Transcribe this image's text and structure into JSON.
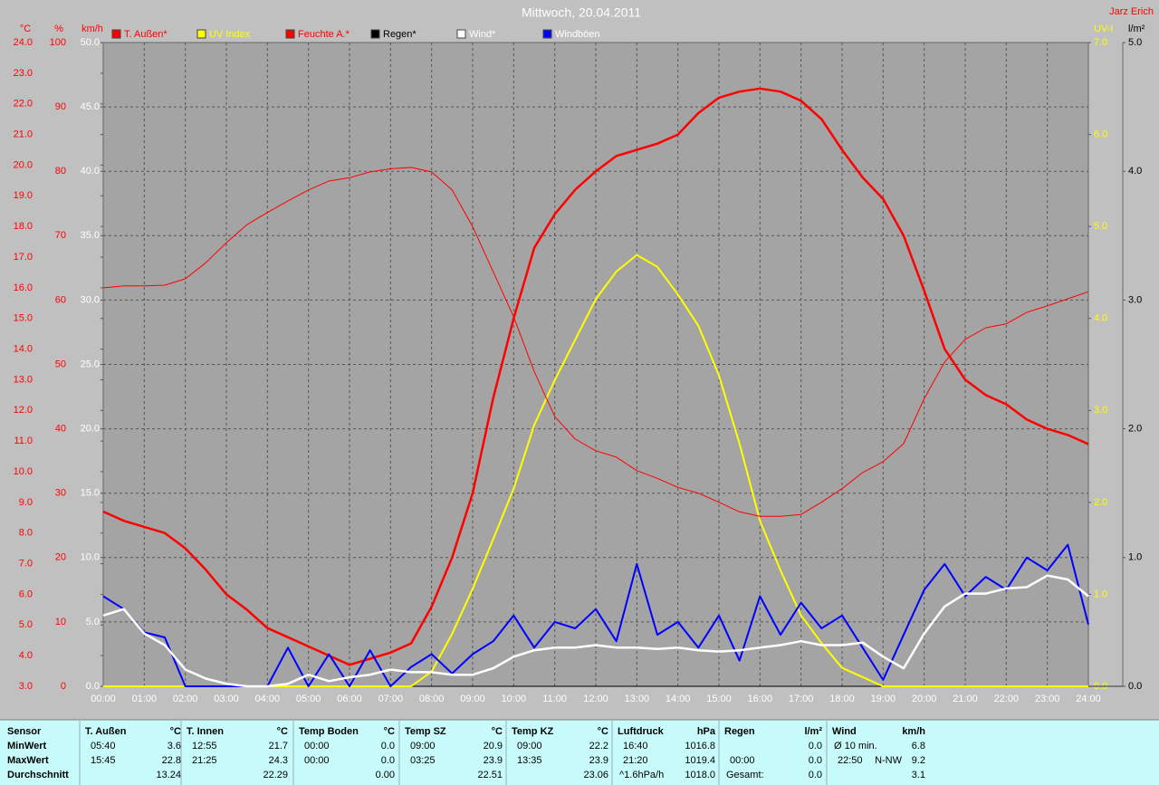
{
  "chart_data": {
    "type": "line",
    "title": "Mittwoch, 20.04.2011",
    "author": "Jarz Erich",
    "axes": [
      {
        "id": "temp",
        "label": "°C",
        "side": "left",
        "color": "#ff0000",
        "lim": [
          3,
          24
        ],
        "ticks": [
          {
            "value": 3,
            "label": "3.0"
          },
          {
            "value": 4,
            "label": "4.0"
          },
          {
            "value": 5,
            "label": "5.0"
          },
          {
            "value": 6,
            "label": "6.0"
          },
          {
            "value": 7,
            "label": "7.0"
          },
          {
            "value": 8,
            "label": "8.0"
          },
          {
            "value": 9,
            "label": "9.0"
          },
          {
            "value": 10,
            "label": "10.0"
          },
          {
            "value": 11,
            "label": "11.0"
          },
          {
            "value": 12,
            "label": "12.0"
          },
          {
            "value": 13,
            "label": "13.0"
          },
          {
            "value": 14,
            "label": "14.0"
          },
          {
            "value": 15,
            "label": "15.0"
          },
          {
            "value": 16,
            "label": "16.0"
          },
          {
            "value": 17,
            "label": "17.0"
          },
          {
            "value": 18,
            "label": "18.0"
          },
          {
            "value": 19,
            "label": "19.0"
          },
          {
            "value": 20,
            "label": "20.0"
          },
          {
            "value": 21,
            "label": "21.0"
          },
          {
            "value": 22,
            "label": "22.0"
          },
          {
            "value": 23,
            "label": "23.0"
          },
          {
            "value": 24,
            "label": "24.0"
          }
        ]
      },
      {
        "id": "hum",
        "label": "%",
        "side": "left",
        "color": "#ff0000",
        "grid": true,
        "lim": [
          0,
          100
        ],
        "ticks": [
          0,
          10,
          20,
          30,
          40,
          50,
          60,
          70,
          80,
          90,
          100
        ]
      },
      {
        "id": "wind",
        "label": "km/h",
        "side": "left",
        "color": "#ffffff",
        "lim": [
          0,
          50
        ],
        "ticks": [
          {
            "value": 0,
            "label": "0.0"
          },
          {
            "value": 5,
            "label": "5.0"
          },
          {
            "value": 10,
            "label": "10.0"
          },
          {
            "value": 15,
            "label": "15.0"
          },
          {
            "value": 20,
            "label": "20.0"
          },
          {
            "value": 25,
            "label": "25.0"
          },
          {
            "value": 30,
            "label": "30.0"
          },
          {
            "value": 35,
            "label": "35.0"
          },
          {
            "value": 40,
            "label": "40.0"
          },
          {
            "value": 45,
            "label": "45.0"
          },
          {
            "value": 50,
            "label": "50.0"
          }
        ]
      },
      {
        "id": "uv",
        "label": "UV-I",
        "side": "right",
        "color": "#ffff00",
        "lim": [
          0,
          7
        ],
        "ticks": [
          {
            "value": 0,
            "label": "0.0"
          },
          {
            "value": 1,
            "label": "1.0"
          },
          {
            "value": 2,
            "label": "2.0"
          },
          {
            "value": 3,
            "label": "3.0"
          },
          {
            "value": 4,
            "label": "4.0"
          },
          {
            "value": 5,
            "label": "5.0"
          },
          {
            "value": 6,
            "label": "6.0"
          },
          {
            "value": 7,
            "label": "7.0"
          }
        ]
      },
      {
        "id": "rain",
        "label": "l/m²",
        "side": "right",
        "color": "#000000",
        "lim": [
          0,
          5
        ],
        "ticks": [
          {
            "value": 0,
            "label": "0.0"
          },
          {
            "value": 1,
            "label": "1.0"
          },
          {
            "value": 2,
            "label": "2.0"
          },
          {
            "value": 3,
            "label": "3.0"
          },
          {
            "value": 4,
            "label": "4.0"
          },
          {
            "value": 5,
            "label": "5.0"
          }
        ]
      }
    ],
    "xlim": [
      0,
      24
    ],
    "xticks": [
      {
        "value": 0,
        "label": "00:00"
      },
      {
        "value": 1,
        "label": "01:00"
      },
      {
        "value": 2,
        "label": "02:00"
      },
      {
        "value": 3,
        "label": "03:00"
      },
      {
        "value": 4,
        "label": "04:00"
      },
      {
        "value": 5,
        "label": "05:00"
      },
      {
        "value": 6,
        "label": "06:00"
      },
      {
        "value": 7,
        "label": "07:00"
      },
      {
        "value": 8,
        "label": "08:00"
      },
      {
        "value": 9,
        "label": "09:00"
      },
      {
        "value": 10,
        "label": "10:00"
      },
      {
        "value": 11,
        "label": "11:00"
      },
      {
        "value": 12,
        "label": "12:00"
      },
      {
        "value": 13,
        "label": "13:00"
      },
      {
        "value": 14,
        "label": "14:00"
      },
      {
        "value": 15,
        "label": "15:00"
      },
      {
        "value": 16,
        "label": "16:00"
      },
      {
        "value": 17,
        "label": "17:00"
      },
      {
        "value": 18,
        "label": "18:00"
      },
      {
        "value": 19,
        "label": "19:00"
      },
      {
        "value": 20,
        "label": "20:00"
      },
      {
        "value": 21,
        "label": "21:00"
      },
      {
        "value": 22,
        "label": "22:00"
      },
      {
        "value": 23,
        "label": "23:00"
      },
      {
        "value": 24,
        "label": "24:00"
      }
    ],
    "x": [
      0,
      0.5,
      1,
      1.5,
      2,
      2.5,
      3,
      3.5,
      4,
      4.5,
      5,
      5.5,
      6,
      6.5,
      7,
      7.5,
      8,
      8.5,
      9,
      9.5,
      10,
      10.5,
      11,
      11.5,
      12,
      12.5,
      13,
      13.5,
      14,
      14.5,
      15,
      15.5,
      16,
      16.5,
      17,
      17.5,
      18,
      18.5,
      19,
      19.5,
      20,
      20.5,
      21,
      21.5,
      22,
      22.5,
      23,
      23.5,
      24
    ],
    "series": [
      {
        "name": "T. Außen*",
        "color": "#ff0000",
        "axis": "temp",
        "width": 2.5,
        "values": [
          8.7,
          8.4,
          8.2,
          8.0,
          7.5,
          6.8,
          6.0,
          5.5,
          4.9,
          4.6,
          4.3,
          4.0,
          3.7,
          3.9,
          4.1,
          4.4,
          5.6,
          7.2,
          9.3,
          12.4,
          15.0,
          17.3,
          18.4,
          19.2,
          19.8,
          20.3,
          20.5,
          20.7,
          21.0,
          21.7,
          22.2,
          22.4,
          22.5,
          22.4,
          22.1,
          21.5,
          20.5,
          19.6,
          18.9,
          17.7,
          15.9,
          14.0,
          13.0,
          12.5,
          12.2,
          11.7,
          11.4,
          11.2,
          10.9
        ]
      },
      {
        "name": "UV Index",
        "color": "#ffff00",
        "axis": "uv",
        "width": 2,
        "values": [
          0,
          0,
          0,
          0,
          0,
          0,
          0,
          0,
          0,
          0,
          0,
          0,
          0,
          0,
          0,
          0,
          0.16,
          0.57,
          1.06,
          1.6,
          2.15,
          2.84,
          3.33,
          3.77,
          4.21,
          4.51,
          4.69,
          4.56,
          4.26,
          3.92,
          3.38,
          2.64,
          1.8,
          1.26,
          0.77,
          0.47,
          0.2,
          0.1,
          0,
          0,
          0,
          0,
          0,
          0,
          0,
          0,
          0,
          0,
          0
        ]
      },
      {
        "name": "Feuchte A.*",
        "color": "#ff0000",
        "axis": "hum",
        "width": 1,
        "values": [
          61.9,
          62.2,
          62.2,
          62.3,
          63.3,
          65.8,
          68.9,
          71.7,
          73.6,
          75.4,
          77.1,
          78.5,
          79.0,
          79.9,
          80.4,
          80.6,
          79.9,
          77.1,
          71.4,
          64.4,
          57.4,
          48.9,
          41.9,
          38.4,
          36.6,
          35.6,
          33.5,
          32.3,
          30.9,
          30.0,
          28.6,
          27.1,
          26.4,
          26.4,
          26.7,
          28.6,
          30.7,
          33.2,
          34.9,
          37.7,
          44.7,
          50.4,
          53.9,
          55.7,
          56.3,
          58.1,
          59.1,
          60.2,
          61.3
        ]
      },
      {
        "name": "Regen*",
        "color": "#000000",
        "axis": "rain",
        "width": 1,
        "values": [
          0,
          0,
          0,
          0,
          0,
          0,
          0,
          0,
          0,
          0,
          0,
          0,
          0,
          0,
          0,
          0,
          0,
          0,
          0,
          0,
          0,
          0,
          0,
          0,
          0,
          0,
          0,
          0,
          0,
          0,
          0,
          0,
          0,
          0,
          0,
          0,
          0,
          0,
          0,
          0,
          0,
          0,
          0,
          0,
          0,
          0,
          0,
          0,
          0
        ]
      },
      {
        "name": "Wind*",
        "color": "#ffffff",
        "axis": "wind",
        "width": 2.5,
        "values": [
          5.5,
          6.0,
          4.1,
          3.2,
          1.3,
          0.6,
          0.2,
          0,
          0,
          0.2,
          0.9,
          0.4,
          0.7,
          0.9,
          1.3,
          1.1,
          1.1,
          0.9,
          0.9,
          1.4,
          2.3,
          2.8,
          3.0,
          3.0,
          3.2,
          3.0,
          3.0,
          2.9,
          3.0,
          2.8,
          2.7,
          2.8,
          3.0,
          3.2,
          3.5,
          3.2,
          3.2,
          3.4,
          2.3,
          1.4,
          4.1,
          6.2,
          7.2,
          7.2,
          7.6,
          7.7,
          8.6,
          8.3,
          7.0
        ]
      },
      {
        "name": "Windböen",
        "color": "#0000ff",
        "axis": "wind",
        "width": 2,
        "values": [
          7.0,
          6.0,
          4.2,
          3.8,
          0,
          0,
          0,
          0,
          0,
          3.0,
          0,
          2.5,
          0,
          2.8,
          0,
          1.5,
          2.5,
          1.0,
          2.5,
          3.5,
          5.5,
          3.0,
          5.0,
          4.5,
          6.0,
          3.5,
          9.5,
          4.0,
          5.0,
          3.0,
          5.5,
          2.0,
          7.0,
          4.0,
          6.5,
          4.5,
          5.5,
          3.0,
          0.5,
          4.0,
          7.5,
          9.5,
          7.0,
          8.5,
          7.5,
          10.0,
          9.0,
          11.0,
          4.8
        ]
      }
    ],
    "draw_order": [
      3,
      1,
      2,
      0,
      5,
      4
    ]
  },
  "table": {
    "header_label": "Sensor",
    "row_labels": [
      "MinWert",
      "MaxWert",
      "Durchschnitt"
    ],
    "columns": [
      {
        "title": "T. Außen",
        "unit": "°C",
        "cells": [
          {
            "left": "05:40",
            "value": "3.6"
          },
          {
            "left": "15:45",
            "value": "22.8"
          },
          {
            "value": "13.24"
          }
        ]
      },
      {
        "title": "T. Innen",
        "unit": "°C",
        "cells": [
          {
            "left": "12:55",
            "value": "21.7"
          },
          {
            "left": "21:25",
            "value": "24.3"
          },
          {
            "value": "22.29"
          }
        ]
      },
      {
        "title": "Temp Boden",
        "unit": "°C",
        "cells": [
          {
            "left": "00:00",
            "value": "0.0"
          },
          {
            "left": "00:00",
            "value": "0.0"
          },
          {
            "value": "0.00"
          }
        ]
      },
      {
        "title": "Temp SZ",
        "unit": "°C",
        "cells": [
          {
            "left": "09:00",
            "value": "20.9"
          },
          {
            "left": "03:25",
            "value": "23.9"
          },
          {
            "value": "22.51"
          }
        ]
      },
      {
        "title": "Temp KZ",
        "unit": "°C",
        "cells": [
          {
            "left": "09:00",
            "value": "22.2"
          },
          {
            "left": "13:35",
            "value": "23.9"
          },
          {
            "value": "23.06"
          }
        ]
      },
      {
        "title": "Luftdruck",
        "unit": "hPa",
        "cells": [
          {
            "left": "16:40",
            "value": "1016.8"
          },
          {
            "left": "21:20",
            "value": "1019.4"
          },
          {
            "left": "^1.6hPa/h",
            "value": "1018.0"
          }
        ]
      },
      {
        "title": "Regen",
        "unit": "l/m²",
        "cells": [
          {
            "value": "0.0"
          },
          {
            "left": "00:00",
            "value": "0.0"
          },
          {
            "left": "Gesamt:",
            "value": "0.0"
          }
        ]
      },
      {
        "title": "Wind",
        "unit": "km/h",
        "cells": [
          {
            "left": "Ø 10 min.",
            "value": "6.8"
          },
          {
            "left": "22:50",
            "mid": "N-NW",
            "value": "9.2"
          },
          {
            "value": "3.1"
          }
        ]
      }
    ]
  }
}
